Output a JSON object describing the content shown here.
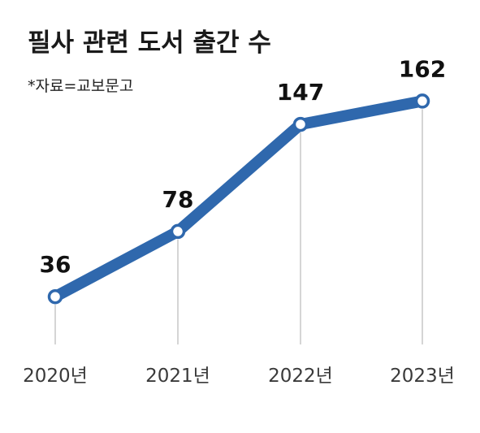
{
  "chart_data": {
    "type": "line",
    "title": "필사 관련 도서 출간 수",
    "subtitle": "*자료=교보문고",
    "categories": [
      "2020년",
      "2021년",
      "2022년",
      "2023년"
    ],
    "values": [
      36,
      78,
      147,
      162
    ],
    "data_labels": [
      "36",
      "78",
      "147",
      "162"
    ],
    "xlabel": "",
    "ylabel": "",
    "ylim": [
      0,
      180
    ],
    "grid": false,
    "legend": "none",
    "colors": {
      "line": "#2f68ad",
      "marker_fill": "#ffffff",
      "guide": "#c7c7c7"
    }
  }
}
